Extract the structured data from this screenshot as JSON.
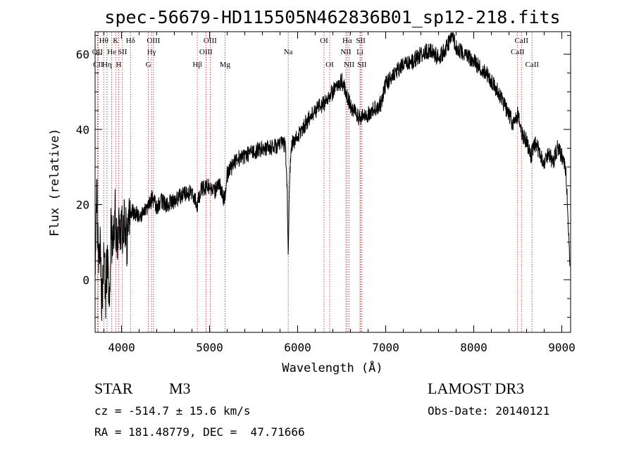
{
  "chart_data": {
    "type": "line",
    "title": "spec-56679-HD115505N462836B01_sp12-218.fits",
    "xlabel": "Wavelength (Å)",
    "ylabel": "Flux (relative)",
    "xlim": [
      3700,
      9100
    ],
    "ylim": [
      -14,
      66
    ],
    "xticks": [
      4000,
      5000,
      6000,
      7000,
      8000,
      9000
    ],
    "yticks": [
      0,
      20,
      40,
      60
    ],
    "spectrum_anchors": [
      [
        3700,
        6
      ],
      [
        3720,
        23
      ],
      [
        3740,
        2
      ],
      [
        3760,
        8
      ],
      [
        3780,
        -8
      ],
      [
        3800,
        6
      ],
      [
        3820,
        -4
      ],
      [
        3840,
        7
      ],
      [
        3860,
        -6
      ],
      [
        3880,
        12
      ],
      [
        3900,
        8
      ],
      [
        3925,
        20
      ],
      [
        3950,
        7
      ],
      [
        3975,
        14
      ],
      [
        4000,
        12
      ],
      [
        4030,
        17
      ],
      [
        4060,
        10
      ],
      [
        4100,
        18
      ],
      [
        4150,
        18
      ],
      [
        4200,
        17
      ],
      [
        4250,
        18
      ],
      [
        4300,
        19
      ],
      [
        4350,
        22
      ],
      [
        4400,
        19
      ],
      [
        4450,
        21
      ],
      [
        4500,
        20
      ],
      [
        4600,
        21
      ],
      [
        4700,
        23
      ],
      [
        4800,
        23
      ],
      [
        4860,
        20
      ],
      [
        4900,
        24
      ],
      [
        5000,
        25
      ],
      [
        5050,
        23
      ],
      [
        5100,
        26
      ],
      [
        5170,
        21
      ],
      [
        5200,
        28
      ],
      [
        5300,
        32
      ],
      [
        5400,
        33
      ],
      [
        5500,
        34
      ],
      [
        5600,
        35
      ],
      [
        5700,
        35
      ],
      [
        5800,
        36
      ],
      [
        5860,
        36
      ],
      [
        5880,
        25
      ],
      [
        5893,
        6
      ],
      [
        5910,
        28
      ],
      [
        5930,
        36
      ],
      [
        6000,
        38
      ],
      [
        6100,
        42
      ],
      [
        6200,
        45
      ],
      [
        6300,
        47
      ],
      [
        6400,
        50
      ],
      [
        6500,
        53
      ],
      [
        6563,
        49
      ],
      [
        6600,
        46
      ],
      [
        6700,
        43
      ],
      [
        6800,
        44
      ],
      [
        6900,
        46
      ],
      [
        6950,
        47
      ],
      [
        7000,
        52
      ],
      [
        7100,
        55
      ],
      [
        7200,
        57
      ],
      [
        7300,
        58
      ],
      [
        7400,
        60
      ],
      [
        7500,
        61
      ],
      [
        7600,
        59
      ],
      [
        7700,
        62
      ],
      [
        7750,
        65
      ],
      [
        7800,
        62
      ],
      [
        7900,
        60
      ],
      [
        8000,
        58
      ],
      [
        8100,
        56
      ],
      [
        8200,
        53
      ],
      [
        8300,
        49
      ],
      [
        8400,
        44
      ],
      [
        8450,
        41
      ],
      [
        8500,
        44
      ],
      [
        8542,
        39
      ],
      [
        8600,
        37
      ],
      [
        8650,
        33
      ],
      [
        8700,
        36
      ],
      [
        8750,
        34
      ],
      [
        8800,
        31
      ],
      [
        8850,
        34
      ],
      [
        8900,
        31
      ],
      [
        8950,
        35
      ],
      [
        9000,
        33
      ],
      [
        9050,
        28
      ],
      [
        9090,
        5
      ]
    ],
    "noise": {
      "seed": 56679,
      "amplitude_blue": 7,
      "amplitude": 2.2
    },
    "spectral_lines": [
      {
        "label": "Hθ",
        "wavelength": 3798,
        "row": 0
      },
      {
        "label": "OII",
        "wavelength": 3727,
        "row": 1
      },
      {
        "label": "CII",
        "wavelength": 3735,
        "row": 2
      },
      {
        "label": "He",
        "wavelength": 3889,
        "row": 1
      },
      {
        "label": "Hη",
        "wavelength": 3835,
        "row": 2
      },
      {
        "label": "K",
        "wavelength": 3934,
        "row": 0
      },
      {
        "label": "SII",
        "wavelength": 4010,
        "row": 1
      },
      {
        "label": "H",
        "wavelength": 3968,
        "row": 2
      },
      {
        "label": "Hδ",
        "wavelength": 4102,
        "row": 0
      },
      {
        "label": "OIII",
        "wavelength": 4363,
        "row": 0
      },
      {
        "label": "Hγ",
        "wavelength": 4341,
        "row": 1
      },
      {
        "label": "G",
        "wavelength": 4305,
        "row": 2
      },
      {
        "label": "OIII",
        "wavelength": 5007,
        "row": 0
      },
      {
        "label": "OIII",
        "wavelength": 4959,
        "row": 1
      },
      {
        "label": "Hβ",
        "wavelength": 4861,
        "row": 2
      },
      {
        "label": "Mg",
        "wavelength": 5175,
        "row": 2
      },
      {
        "label": "Na",
        "wavelength": 5893,
        "row": 1
      },
      {
        "label": "OI",
        "wavelength": 6300,
        "row": 0
      },
      {
        "label": "OI",
        "wavelength": 6364,
        "row": 2
      },
      {
        "label": "Hα",
        "wavelength": 6563,
        "row": 0
      },
      {
        "label": "NII",
        "wavelength": 6548,
        "row": 1
      },
      {
        "label": "NII",
        "wavelength": 6584,
        "row": 2
      },
      {
        "label": "SII",
        "wavelength": 6717,
        "row": 0
      },
      {
        "label": "Li",
        "wavelength": 6708,
        "row": 1
      },
      {
        "label": "SII",
        "wavelength": 6731,
        "row": 2
      },
      {
        "label": "CaII",
        "wavelength": 8542,
        "row": 0
      },
      {
        "label": "CaII",
        "wavelength": 8498,
        "row": 1
      },
      {
        "label": "CaII",
        "wavelength": 8662,
        "row": 2
      }
    ]
  },
  "info": {
    "class_label": "STAR",
    "subclass": "M3",
    "survey": "LAMOST DR3",
    "cz_line": "cz = -514.7 ± 15.6 km/s",
    "obs_date_line": "Obs-Date: 20140121",
    "coords_line": "RA = 181.48779, DEC =  47.71666"
  }
}
